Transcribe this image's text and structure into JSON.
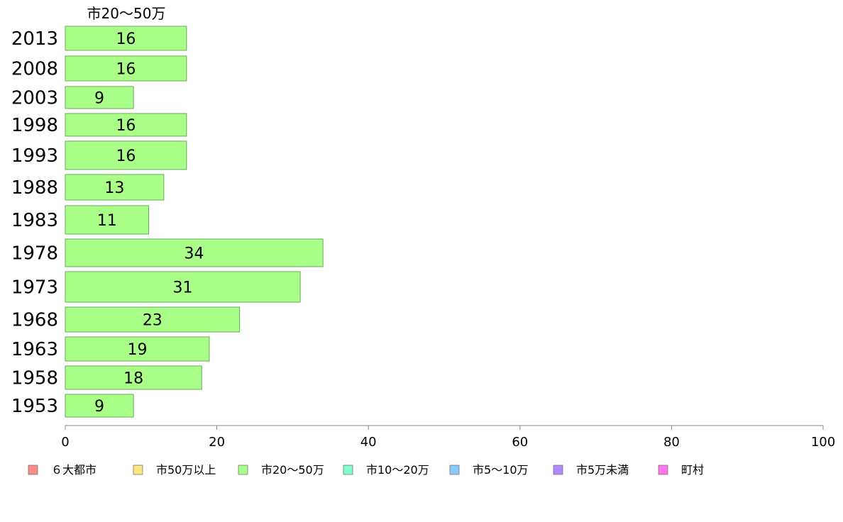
{
  "chart_data": {
    "type": "bar",
    "orientation": "horizontal",
    "series_title": "市20〜50万",
    "categories": [
      "2013",
      "2008",
      "2003",
      "1998",
      "1993",
      "1988",
      "1983",
      "1978",
      "1973",
      "1968",
      "1963",
      "1958",
      "1953"
    ],
    "series": [
      {
        "name": "市20〜50万",
        "color": "#aaff88",
        "values": [
          16,
          16,
          9,
          16,
          16,
          13,
          11,
          34,
          31,
          23,
          19,
          18,
          9
        ]
      }
    ],
    "xlim": [
      0,
      100
    ],
    "xticks": [
      "0",
      "20",
      "40",
      "60",
      "80",
      "100"
    ],
    "grid": false,
    "legend_position": "bottom"
  },
  "legend": [
    {
      "label": "６大都市",
      "color": "#ff8a8a"
    },
    {
      "label": "市50万以上",
      "color": "#ffe680"
    },
    {
      "label": "市20〜50万",
      "color": "#aaff88"
    },
    {
      "label": "市10〜20万",
      "color": "#80ffcc"
    },
    {
      "label": "市5〜10万",
      "color": "#88ccff"
    },
    {
      "label": "市5万未満",
      "color": "#b088ff"
    },
    {
      "label": "町村",
      "color": "#ff77ee"
    }
  ]
}
